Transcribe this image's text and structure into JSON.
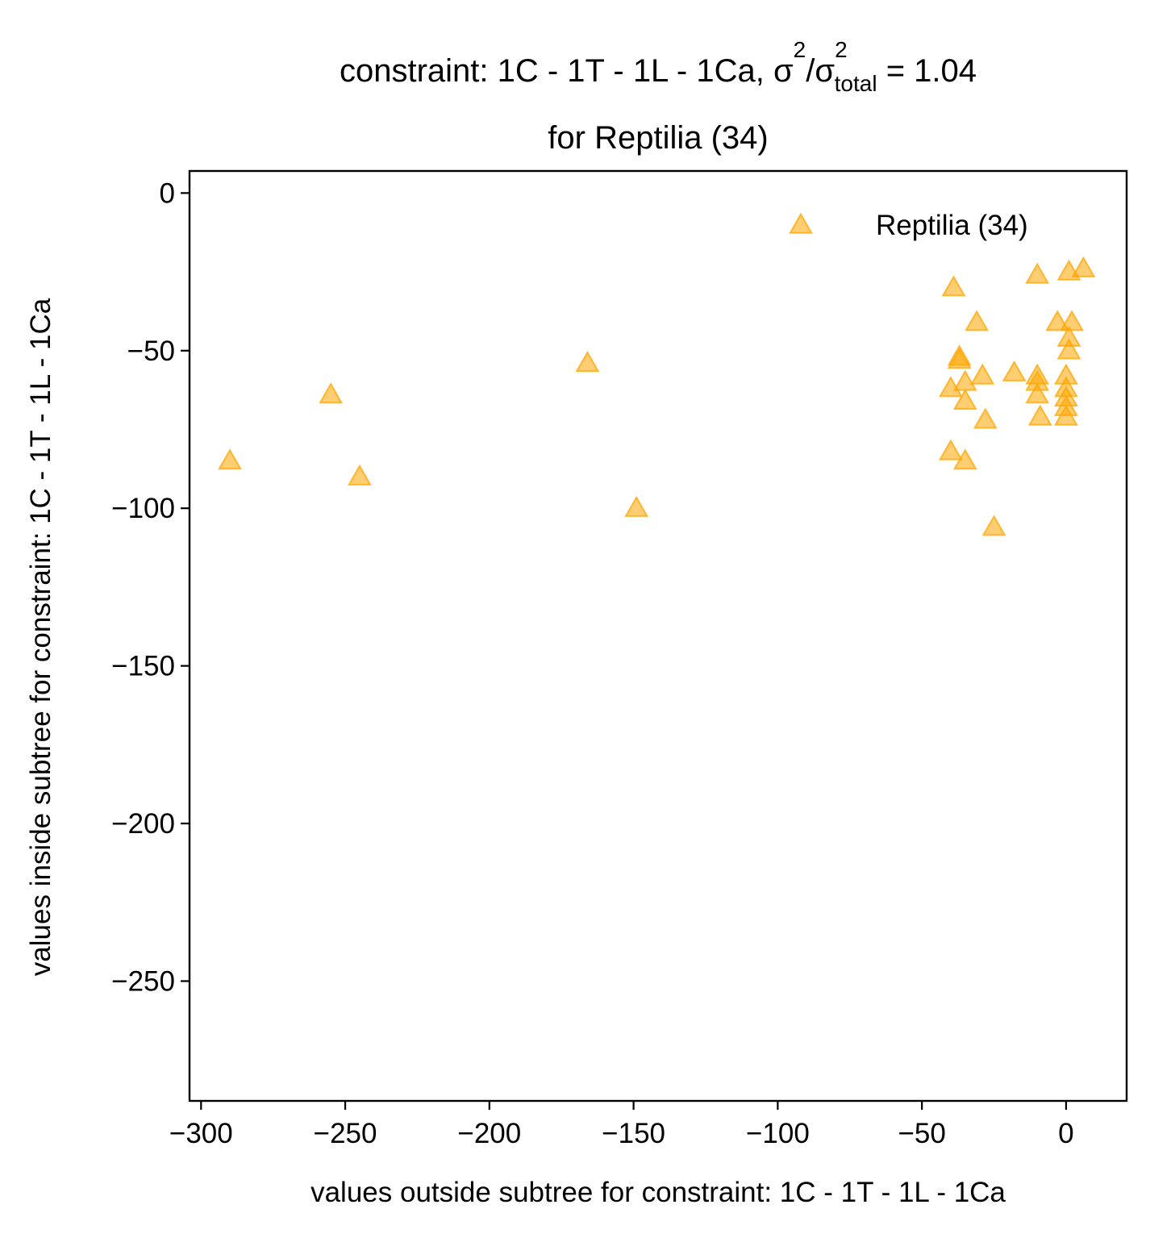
{
  "chart_data": {
    "type": "scatter",
    "title": {
      "prefix": "constraint: 1C - 1T - 1L - 1Ca, σ",
      "sup1": "2",
      "slash": "/σ",
      "sup2": "2",
      "sub": "total",
      "suffix": " =  1.04",
      "line2": "for Reptilia (34)"
    },
    "xlabel": "values outside subtree for constraint: 1C - 1T - 1L - 1Ca",
    "ylabel": "values inside subtree for constraint: 1C - 1T - 1L - 1Ca",
    "xlim": [
      -304,
      21
    ],
    "ylim": [
      -288,
      7
    ],
    "xticks": [
      -300,
      -250,
      -200,
      -150,
      -100,
      -50,
      0
    ],
    "yticks": [
      0,
      -50,
      -100,
      -150,
      -200,
      -250
    ],
    "xtick_labels": [
      "−300",
      "−250",
      "−200",
      "−150",
      "−100",
      "−50",
      "0"
    ],
    "ytick_labels": [
      "0",
      "−50",
      "−100",
      "−150",
      "−200",
      "−250"
    ],
    "grid": false,
    "legend": {
      "placement": "top-right",
      "entries": [
        "Reptilia (34)"
      ]
    },
    "series": [
      {
        "name": "Reptilia (34)",
        "marker": "triangle",
        "color": "#FFA500",
        "points": [
          [
            -290,
            -85
          ],
          [
            -255,
            -64
          ],
          [
            -245,
            -90
          ],
          [
            -166,
            -54
          ],
          [
            -149,
            -100
          ],
          [
            -39,
            -30
          ],
          [
            -37,
            -52
          ],
          [
            -37,
            -53
          ],
          [
            -40,
            -62
          ],
          [
            -40,
            -82
          ],
          [
            -35,
            -60
          ],
          [
            -35,
            -66
          ],
          [
            -35,
            -85
          ],
          [
            -31,
            -41
          ],
          [
            -29,
            -58
          ],
          [
            -28,
            -72
          ],
          [
            -25,
            -106
          ],
          [
            -18,
            -57
          ],
          [
            -10,
            -26
          ],
          [
            -10,
            -58
          ],
          [
            -10,
            -60
          ],
          [
            -10,
            -64
          ],
          [
            -9,
            -71
          ],
          [
            -3,
            -41
          ],
          [
            0,
            -58
          ],
          [
            0,
            -62
          ],
          [
            0,
            -65
          ],
          [
            0,
            -68
          ],
          [
            0,
            -71
          ],
          [
            1,
            -50
          ],
          [
            1,
            -46
          ],
          [
            1,
            -25
          ],
          [
            2,
            -41
          ],
          [
            6,
            -24
          ]
        ]
      }
    ]
  }
}
